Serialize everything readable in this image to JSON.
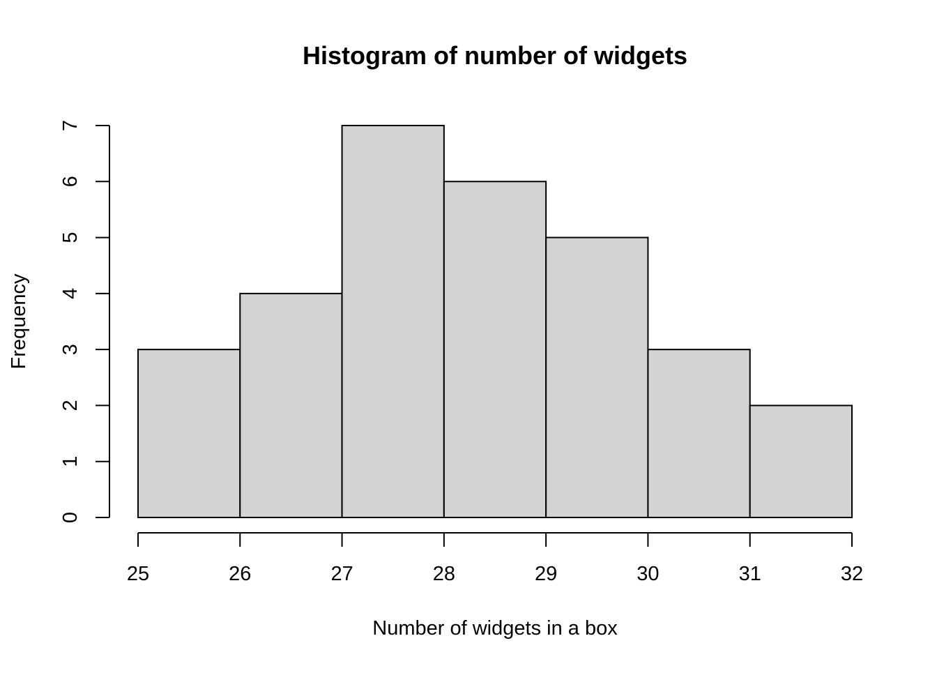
{
  "chart_data": {
    "type": "bar",
    "subtype": "histogram",
    "title": "Histogram of number of widgets",
    "xlabel": "Number of widgets in a box",
    "ylabel": "Frequency",
    "bins": [
      {
        "from": 25,
        "to": 26,
        "count": 3
      },
      {
        "from": 26,
        "to": 27,
        "count": 4
      },
      {
        "from": 27,
        "to": 28,
        "count": 7
      },
      {
        "from": 28,
        "to": 29,
        "count": 6
      },
      {
        "from": 29,
        "to": 30,
        "count": 5
      },
      {
        "from": 30,
        "to": 31,
        "count": 3
      },
      {
        "from": 31,
        "to": 32,
        "count": 2
      }
    ],
    "x_ticks": [
      25,
      26,
      27,
      28,
      29,
      30,
      31,
      32
    ],
    "y_ticks": [
      0,
      1,
      2,
      3,
      4,
      5,
      6,
      7
    ],
    "xlim": [
      25,
      32
    ],
    "ylim": [
      0,
      7
    ],
    "grid": false,
    "legend": "none",
    "colors": {
      "bar_fill": "#d3d3d3",
      "bar_stroke": "#000000"
    }
  }
}
